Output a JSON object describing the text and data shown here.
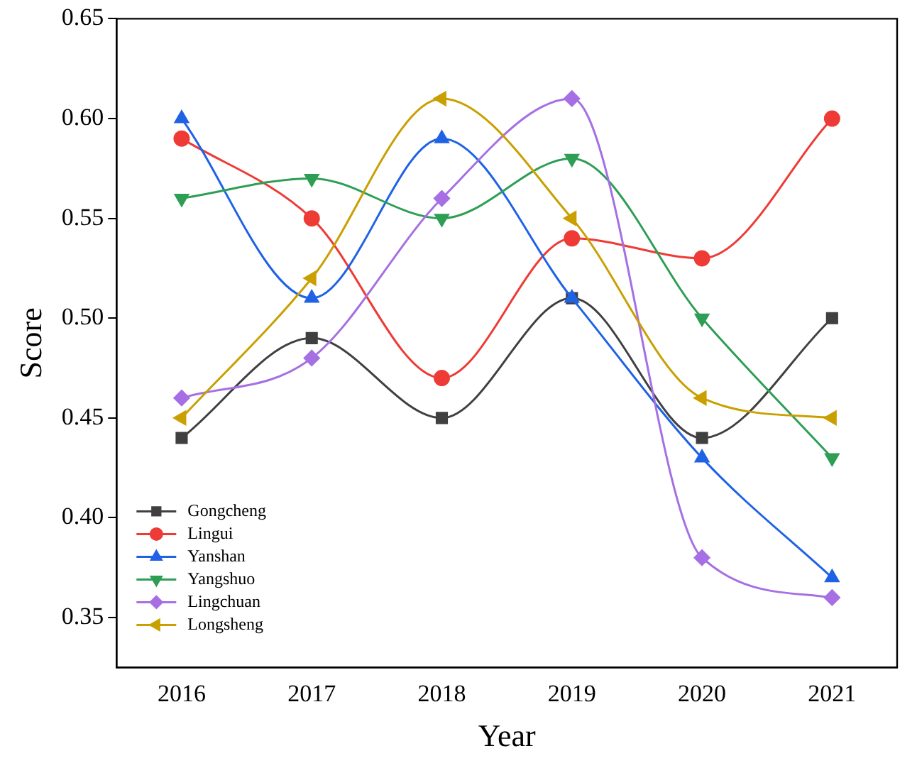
{
  "chart_data": {
    "type": "line",
    "xlabel": "Year",
    "ylabel": "Score",
    "categories": [
      "2016",
      "2017",
      "2018",
      "2019",
      "2020",
      "2021"
    ],
    "ylim": [
      0.325,
      0.65
    ],
    "yticks": [
      {
        "value": 0.35,
        "label": "0.35"
      },
      {
        "value": 0.4,
        "label": "0.40"
      },
      {
        "value": 0.45,
        "label": "0.45"
      },
      {
        "value": 0.5,
        "label": "0.50"
      },
      {
        "value": 0.55,
        "label": "0.55"
      },
      {
        "value": 0.6,
        "label": "0.60"
      },
      {
        "value": 0.65,
        "label": "0.65"
      }
    ],
    "grid": false,
    "legend": "bottom left",
    "series": [
      {
        "name": "Gongcheng",
        "color": "#404040",
        "marker": "square",
        "values": [
          0.44,
          0.49,
          0.45,
          0.51,
          0.44,
          0.5
        ]
      },
      {
        "name": "Lingui",
        "color": "#ee3b36",
        "marker": "circle",
        "values": [
          0.59,
          0.55,
          0.47,
          0.54,
          0.53,
          0.6
        ]
      },
      {
        "name": "Yanshan",
        "color": "#1f62e6",
        "marker": "triangle",
        "values": [
          0.6,
          0.51,
          0.59,
          0.51,
          0.43,
          0.37
        ]
      },
      {
        "name": "Yangshuo",
        "color": "#2e9e55",
        "marker": "triangle-down",
        "values": [
          0.56,
          0.57,
          0.55,
          0.58,
          0.5,
          0.43
        ]
      },
      {
        "name": "Lingchuan",
        "color": "#a66fe3",
        "marker": "diamond",
        "values": [
          0.46,
          0.48,
          0.56,
          0.61,
          0.38,
          0.36
        ]
      },
      {
        "name": "Longsheng",
        "color": "#c9a000",
        "marker": "triangle-left",
        "values": [
          0.45,
          0.52,
          0.61,
          0.55,
          0.46,
          0.45
        ]
      }
    ]
  }
}
